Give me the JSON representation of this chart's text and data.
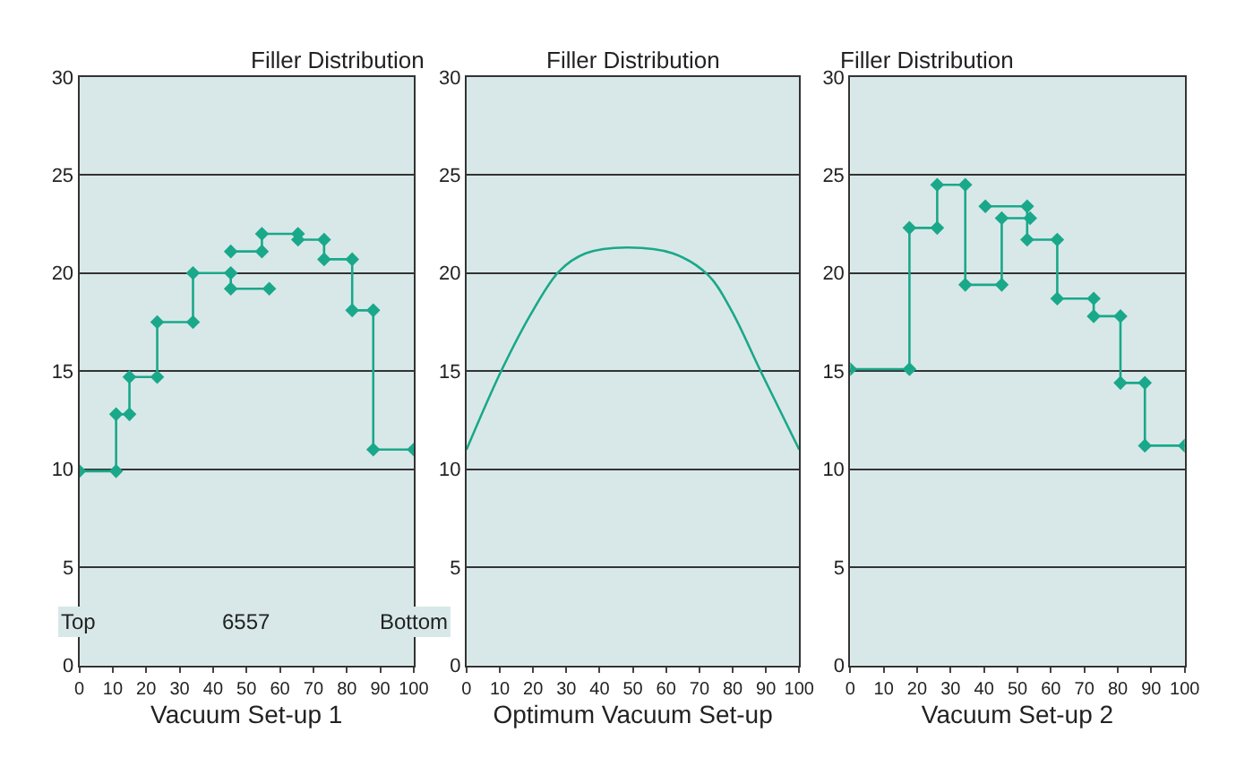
{
  "chart_data": [
    {
      "type": "line",
      "title": "Filler Distribution",
      "xlabel": "Vacuum Set-up 1",
      "annotations": [
        "Top",
        "6557",
        "Bottom"
      ],
      "xlim": [
        0,
        100
      ],
      "ylim": [
        0,
        30
      ],
      "xticks": [
        0,
        10,
        20,
        30,
        40,
        50,
        60,
        70,
        80,
        90,
        100
      ],
      "yticks": [
        0,
        5,
        10,
        15,
        20,
        25,
        30
      ],
      "grid": "y",
      "marker": "diamond",
      "line_style": "solid",
      "x": [
        0,
        11,
        11,
        15,
        15,
        23.3,
        23.3,
        34,
        34,
        45.3,
        45.3,
        56.8,
        50,
        45.3,
        54.6,
        54.6,
        65.4,
        65.4,
        73.2,
        73.2,
        81.6,
        81.6,
        87.9,
        87.9,
        100
      ],
      "series": [
        {
          "color": "#1aa88a",
          "values": [
            9.9,
            9.9,
            12.8,
            12.8,
            14.7,
            14.7,
            17.5,
            17.5,
            20.0,
            20.0,
            19.2,
            19.2,
            null,
            21.1,
            21.1,
            22.0,
            22.0,
            21.7,
            21.7,
            20.7,
            20.7,
            18.1,
            18.1,
            11.0,
            11.0
          ]
        }
      ]
    },
    {
      "type": "line",
      "title": "Filler Distribution",
      "xlabel": "Optimum Vacuum Set-up",
      "xlim": [
        0,
        100
      ],
      "ylim": [
        0,
        30
      ],
      "xticks": [
        0,
        10,
        20,
        30,
        40,
        50,
        60,
        70,
        80,
        90,
        100
      ],
      "yticks": [
        0,
        5,
        10,
        15,
        20,
        25,
        30
      ],
      "grid": "y",
      "marker": "none",
      "line_style": "solid",
      "x": [
        0,
        10.4,
        20,
        27.9,
        35.8,
        48,
        62,
        72.6,
        79.6,
        88.4,
        100
      ],
      "series": [
        {
          "color": "#1aa88a",
          "values": [
            11.0,
            15.0,
            18.1,
            20.1,
            21.0,
            21.3,
            21.0,
            19.9,
            18.1,
            15.0,
            11.0
          ]
        }
      ]
    },
    {
      "type": "line",
      "title": "Filler Distribution",
      "xlabel": "Vacuum Set-up 2",
      "xlim": [
        0,
        100
      ],
      "ylim": [
        0,
        30
      ],
      "xticks": [
        0,
        10,
        20,
        30,
        40,
        50,
        60,
        70,
        80,
        90,
        100
      ],
      "yticks": [
        0,
        5,
        10,
        15,
        20,
        25,
        30
      ],
      "grid": "y",
      "marker": "diamond",
      "line_style": "solid",
      "x": [
        0,
        17.7,
        17.7,
        26,
        26,
        34.4,
        34.4,
        45.3,
        45.3,
        53.8,
        47,
        40.4,
        52.9,
        52.9,
        61.9,
        61.9,
        72.8,
        72.8,
        80.8,
        80.8,
        88.1,
        88.1,
        100
      ],
      "series": [
        {
          "color": "#1aa88a",
          "values": [
            15.1,
            15.1,
            22.3,
            22.3,
            24.5,
            24.5,
            19.4,
            19.4,
            22.8,
            22.8,
            null,
            23.4,
            23.4,
            21.7,
            21.7,
            18.7,
            18.7,
            17.8,
            17.8,
            14.4,
            14.4,
            11.2,
            11.2
          ]
        }
      ]
    }
  ]
}
